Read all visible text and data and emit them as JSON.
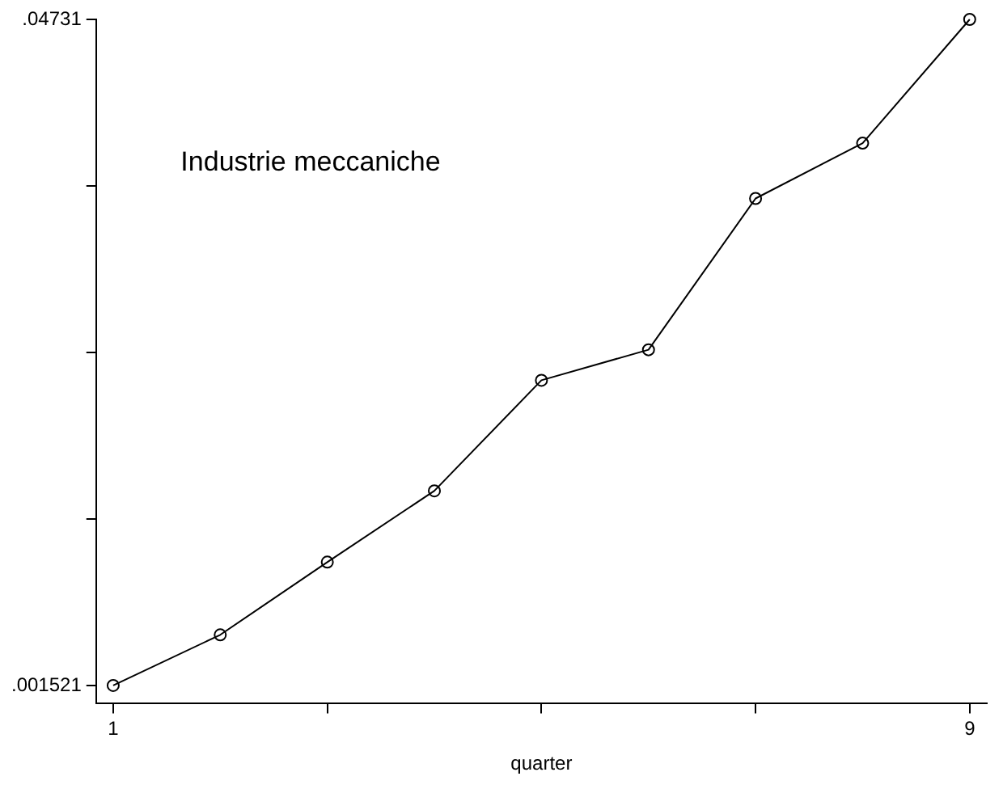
{
  "chart_data": {
    "type": "line",
    "xlabel": "quarter",
    "annotations": [
      "Industrie meccaniche"
    ],
    "x": [
      1,
      2,
      3,
      4,
      5,
      6,
      7,
      8,
      9
    ],
    "series": [
      {
        "color": "#000000",
        "values": [
          0.001521,
          0.005,
          0.01,
          0.0149,
          0.0225,
          0.0246,
          0.035,
          0.0388,
          0.04731
        ]
      }
    ],
    "xlim": [
      0.84,
      9.16
    ],
    "ylim": [
      0.00027,
      0.04731
    ],
    "xticks": [
      {
        "value": 1,
        "label": "1"
      },
      {
        "value": 3,
        "label": null
      },
      {
        "value": 5,
        "label": null
      },
      {
        "value": 7,
        "label": null
      },
      {
        "value": 9,
        "label": "9"
      }
    ],
    "yticks": [
      {
        "value": 0.001521,
        "label": ".001521"
      },
      {
        "value": 0.01296825,
        "label": null
      },
      {
        "value": 0.0244155,
        "label": null
      },
      {
        "value": 0.03586275,
        "label": null
      },
      {
        "value": 0.04731,
        "label": ".04731"
      }
    ],
    "grid": false,
    "legend": false,
    "marker": "circle",
    "line_style": "solid"
  }
}
